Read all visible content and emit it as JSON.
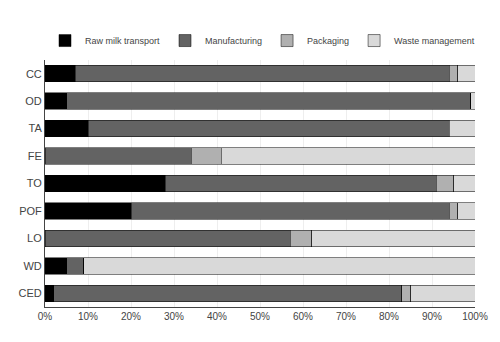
{
  "chart_data": {
    "type": "bar",
    "orientation": "horizontal",
    "stacked": true,
    "categories": [
      "CC",
      "OD",
      "TA",
      "FE",
      "TO",
      "POF",
      "LO",
      "WD",
      "CED"
    ],
    "series": [
      {
        "name": "Raw milk transport",
        "color": "#000000",
        "values": [
          7,
          5,
          10,
          0,
          28,
          20,
          0,
          5,
          2
        ]
      },
      {
        "name": "Manufacturing",
        "color": "#636363",
        "values": [
          87,
          94,
          84,
          34,
          63,
          74,
          57,
          4,
          81
        ]
      },
      {
        "name": "Packaging",
        "color": "#b0b0b0",
        "values": [
          2,
          0,
          0,
          7,
          4,
          2,
          5,
          0,
          2
        ]
      },
      {
        "name": "Waste management",
        "color": "#d9d9d9",
        "values": [
          4,
          1,
          6,
          59,
          5,
          4,
          38,
          91,
          15
        ]
      }
    ],
    "xlim": [
      0,
      100
    ],
    "xticks": [
      {
        "value": 0,
        "label": "0%"
      },
      {
        "value": 10,
        "label": "10%"
      },
      {
        "value": 20,
        "label": "20%"
      },
      {
        "value": 30,
        "label": "30%"
      },
      {
        "value": 40,
        "label": "40%"
      },
      {
        "value": 50,
        "label": "50%"
      },
      {
        "value": 60,
        "label": "60%"
      },
      {
        "value": 70,
        "label": "70%"
      },
      {
        "value": 80,
        "label": "80%"
      },
      {
        "value": 90,
        "label": "90%"
      },
      {
        "value": 100,
        "label": "100%"
      }
    ],
    "grid": true,
    "legend": "top"
  }
}
